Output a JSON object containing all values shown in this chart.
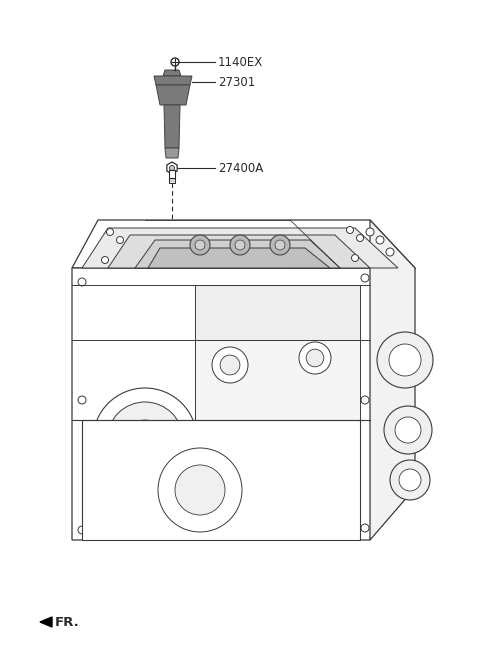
{
  "bg_color": "#ffffff",
  "line_color": "#2a2a2a",
  "label_1140EX": "1140EX",
  "label_27301": "27301",
  "label_27400A": "27400A",
  "label_FR": "FR.",
  "coil_color": "#7a7a7a",
  "coil_edge": "#444444",
  "engine_line_color": "#3a3a3a",
  "label_fontsize": 8.5,
  "fr_fontsize": 9.5,
  "dpi": 100,
  "fig_w": 4.8,
  "fig_h": 6.57
}
